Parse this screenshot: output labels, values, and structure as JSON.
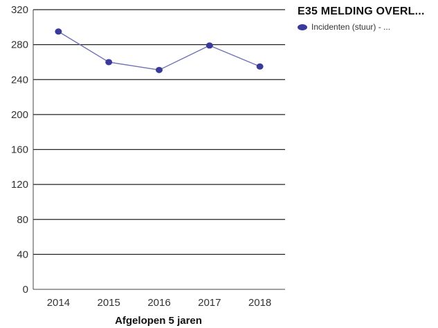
{
  "chart_data": {
    "type": "line",
    "categories": [
      "2014",
      "2015",
      "2016",
      "2017",
      "2018"
    ],
    "series": [
      {
        "name": "Incidenten (stuur) - ...",
        "values": [
          295,
          260,
          251,
          279,
          255
        ]
      }
    ],
    "xlabel": "Afgelopen 5 jaren",
    "ylabel": "",
    "ylim": [
      0,
      320
    ],
    "yticks": [
      "0",
      "40",
      "80",
      "120",
      "160",
      "200",
      "240",
      "280",
      "320"
    ],
    "grid": true,
    "legend_position": "top-right",
    "colors": {
      "series": "#3a3a9a",
      "grid": "#222222"
    }
  },
  "legend": {
    "title": "E35 MELDING OVERL..."
  }
}
